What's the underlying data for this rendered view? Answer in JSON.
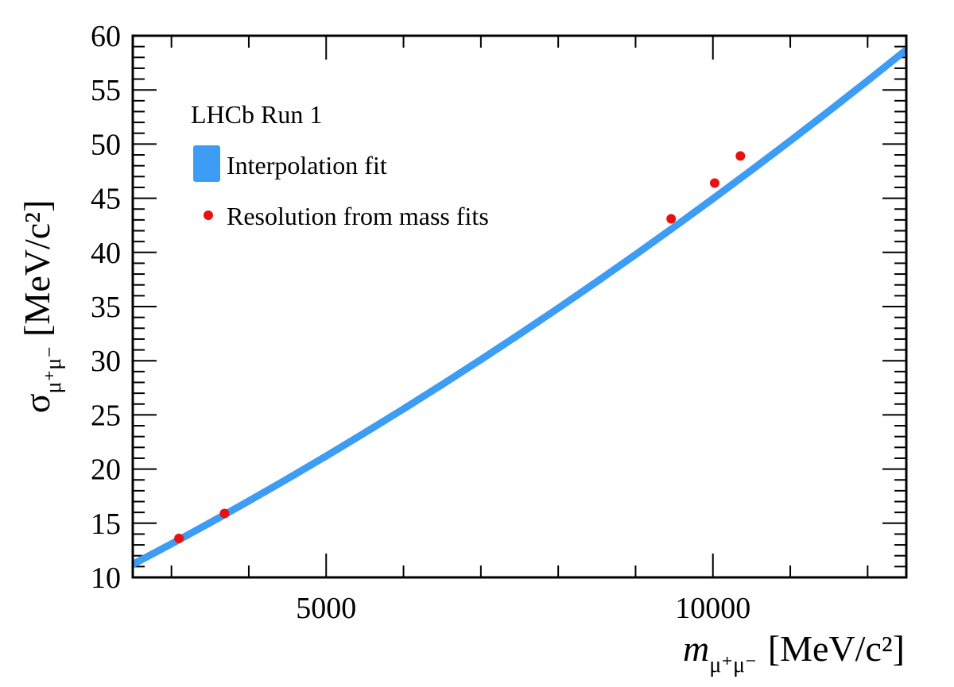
{
  "chart_data": {
    "type": "line",
    "title": "",
    "xlabel": {
      "symbol": "m",
      "subscript": "μ⁺μ⁻",
      "units": "[MeV/c²]"
    },
    "ylabel": {
      "symbol": "σ",
      "subscript": "μ⁺μ⁻",
      "units": "[MeV/c²]"
    },
    "xlim": [
      2500,
      12500
    ],
    "ylim": [
      10,
      60
    ],
    "xticks": [
      "5000",
      "10000"
    ],
    "yticks": [
      "10",
      "15",
      "20",
      "25",
      "30",
      "35",
      "40",
      "45",
      "50",
      "55",
      "60"
    ],
    "legend_placement": "top-left",
    "legend_header": "LHCb Run 1",
    "series": [
      {
        "name": "Interpolation fit",
        "kind": "band",
        "color": "#3d9cf4",
        "x": [
          2500,
          3000,
          3500,
          4000,
          4500,
          5000,
          5500,
          6000,
          6500,
          7000,
          7500,
          8000,
          8500,
          9000,
          9500,
          10000,
          10500,
          11000,
          11500,
          12000,
          12500
        ],
        "y": [
          11.2,
          13.1,
          15.05,
          17.05,
          19.1,
          21.2,
          23.35,
          25.55,
          27.8,
          30.1,
          32.45,
          34.85,
          37.3,
          39.8,
          42.35,
          44.95,
          47.6,
          50.3,
          53.05,
          55.85,
          58.7
        ]
      },
      {
        "name": "Resolution from mass fits",
        "kind": "points",
        "color": "#e81010",
        "x": [
          3097,
          3686,
          9460,
          10023,
          10355
        ],
        "y": [
          13.6,
          15.9,
          43.1,
          46.4,
          48.9
        ]
      }
    ]
  }
}
